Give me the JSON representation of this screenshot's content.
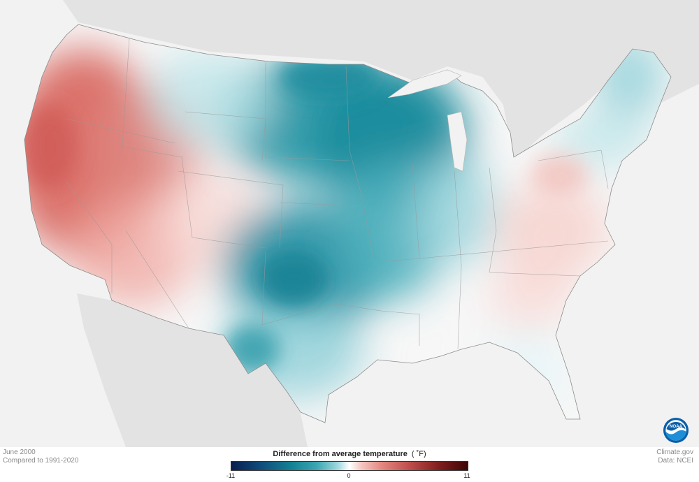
{
  "map": {
    "region": "Contiguous United States",
    "anomaly_colors": {
      "cold_strong": "#1f8d9e",
      "cold_light": "#bfe6ea",
      "neutral": "#ffffff",
      "warm_light": "#f6cfcb",
      "warm_strong": "#d96a63"
    }
  },
  "footer": {
    "period": "June 2000",
    "baseline": "Compared to 1991-2020",
    "source_site": "Climate.gov",
    "source_data": "Data: NCEI"
  },
  "legend": {
    "title": "Difference from average temperature",
    "unit": "( ˚F)",
    "min_label": "-11",
    "mid_label": "0",
    "max_label": "11",
    "range": [
      -11,
      11
    ]
  },
  "logo": {
    "text": "NOAA",
    "icon": "noaa-logo-icon",
    "colors": {
      "ring": "#0a5fa8",
      "inner": "#1d8fd8",
      "wave": "#ffffff"
    }
  }
}
